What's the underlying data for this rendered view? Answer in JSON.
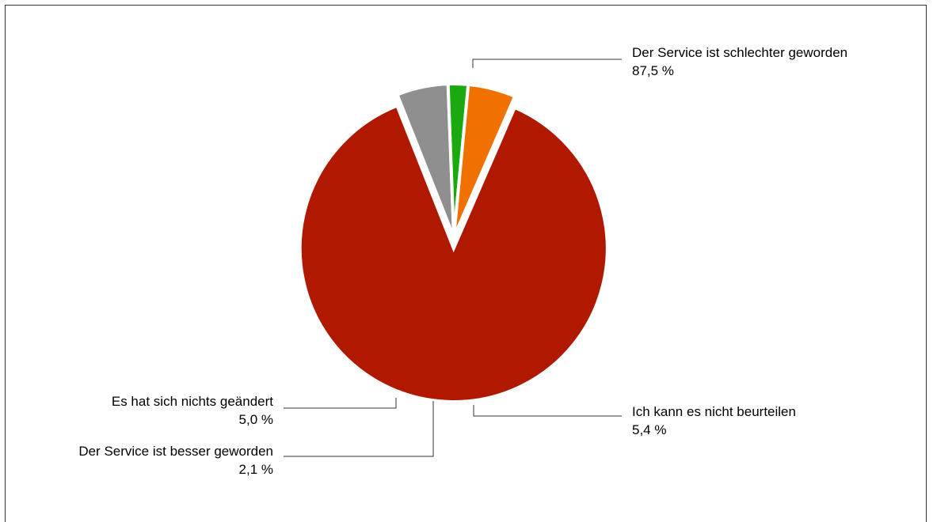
{
  "chart_data": {
    "type": "pie",
    "start_angle_deg": 23.4,
    "direction": "clockwise",
    "exploded_slice": "Der Service ist schlechter geworden",
    "series": [
      {
        "values": [
          {
            "label": "Der Service ist schlechter geworden",
            "value": 87.5,
            "value_label": "87,5 %",
            "color": "#b01800"
          },
          {
            "label": "Ich kann es nicht beurteilen",
            "value": 5.4,
            "value_label": "5,4 %",
            "color": "#8f8f8f"
          },
          {
            "label": "Der Service ist besser geworden",
            "value": 2.1,
            "value_label": "2,1 %",
            "color": "#1aaa10"
          },
          {
            "label": "Es hat sich nichts geändert",
            "value": 5.0,
            "value_label": "5,0 %",
            "color": "#f07000"
          }
        ]
      }
    ]
  }
}
